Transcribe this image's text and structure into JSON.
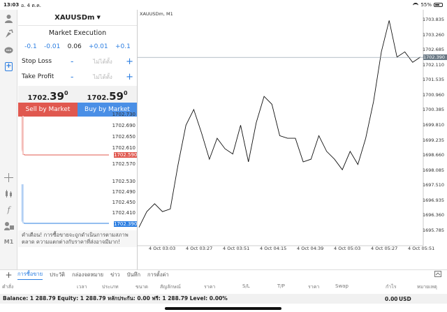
{
  "status_bar": {
    "time": "13:03",
    "date": "อ. 4 ต.ค.",
    "battery": "55%"
  },
  "left_tools": [
    "user-icon",
    "login-icon",
    "chat-icon",
    "new-order-icon",
    "crosshair-icon",
    "candle-type-icon",
    "indicator-f-icon",
    "objects-icon",
    "timeframe-label"
  ],
  "timeframe": "M1",
  "order_panel": {
    "symbol": "XAUUSDm",
    "dropdown_arrow": "▼",
    "execution": "Market Execution",
    "volume_steps": [
      "-0.1",
      "-0.01",
      "0.06",
      "+0.01",
      "+0.1"
    ],
    "stop_loss": {
      "label": "Stop Loss",
      "minus": "-",
      "placeholder": "ไม่ได้ตั้ง",
      "plus": "+"
    },
    "take_profit": {
      "label": "Take Profit",
      "minus": "-",
      "placeholder": "ไม่ได้ตั้ง",
      "plus": "+"
    },
    "bid": {
      "prefix": "1702.",
      "big": "39",
      "sup": "0"
    },
    "ask": {
      "prefix": "1702.",
      "big": "59",
      "sup": "0"
    },
    "sell_label": "Sell by Market",
    "buy_label": "Buy by Market",
    "sell_color": "#e0584f",
    "buy_color": "#4a8fe6"
  },
  "tick_chart_top": {
    "labels": [
      "1702.730",
      "1702.690",
      "1702.650",
      "1702.610",
      "1702.570"
    ],
    "tag": "1702.590"
  },
  "tick_chart_bottom": {
    "labels": [
      "1702.530",
      "1702.490",
      "1702.450",
      "1702.410"
    ],
    "tag": "1702.390"
  },
  "warning": "คำเตือน! การซื้อขายจะถูกดำเนินการตามสภาพตลาด ความแตกต่างกับราคาที่ส่งอาจมีมาก!",
  "chart": {
    "title": "XAUUSDm, M1",
    "current_price": "1702.390",
    "y_labels": [
      "1703.835",
      "1703.260",
      "1702.685",
      "1702.110",
      "1701.535",
      "1700.960",
      "1700.385",
      "1699.810",
      "1699.235",
      "1698.660",
      "1698.085",
      "1697.510",
      "1696.935",
      "1696.360",
      "1695.785"
    ],
    "x_labels": [
      "4 Oct 03:03",
      "4 Oct 03:27",
      "4 Oct 03:51",
      "4 Oct 04:15",
      "4 Oct 04:39",
      "4 Oct 05:03",
      "4 Oct 05:27",
      "4 Oct 05:51"
    ]
  },
  "chart_data": {
    "type": "line",
    "title": "XAUUSDm, M1",
    "xlabel": "",
    "ylabel": "",
    "ylim": [
      1695.5,
      1704.0
    ],
    "x": [
      "03:00",
      "03:06",
      "03:12",
      "03:18",
      "03:24",
      "03:27",
      "03:30",
      "03:36",
      "03:42",
      "03:48",
      "03:51",
      "03:54",
      "04:00",
      "04:06",
      "04:12",
      "04:15",
      "04:18",
      "04:24",
      "04:30",
      "04:36",
      "04:39",
      "04:42",
      "04:48",
      "04:54",
      "05:00",
      "05:03",
      "05:06",
      "05:12",
      "05:18",
      "05:24",
      "05:27",
      "05:30",
      "05:36",
      "05:42",
      "05:48",
      "05:51",
      "05:54"
    ],
    "series": [
      {
        "values": [
          1695.9,
          1696.5,
          1696.8,
          1696.5,
          1696.6,
          1698.3,
          1699.8,
          1700.4,
          1699.5,
          1698.5,
          1699.3,
          1698.9,
          1698.7,
          1699.8,
          1698.4,
          1699.9,
          1700.9,
          1700.6,
          1699.4,
          1699.3,
          1699.3,
          1698.4,
          1698.5,
          1699.4,
          1698.8,
          1698.5,
          1698.1,
          1698.8,
          1698.3,
          1699.3,
          1700.7,
          1702.6,
          1703.8,
          1702.4,
          1702.6,
          1702.2,
          1702.4
        ]
      }
    ],
    "grid": false,
    "line_color": "#111111",
    "current_price_line": 1702.39
  },
  "bottom_tabs": {
    "add": "+",
    "items": [
      "การซื้อขาย",
      "ประวัติ",
      "กล่องจดหมาย",
      "ข่าว",
      "บันทึก",
      "การตั้งค่า"
    ]
  },
  "columns": [
    "คำสั่ง",
    "เวลา",
    "ประเภท",
    "ขนาด",
    "สัญลักษณ์",
    "ราคา",
    "S/L",
    "T/P",
    "ราคา",
    "Swap",
    "กำไร",
    "หมายเหตุ"
  ],
  "balance": {
    "text": "Balance: 1 288.79 Equity: 1 288.79 หลักประกัน: 0.00 ฟรี: 1 288.79 Level: 0.00%",
    "profit": "0.00",
    "currency": "USD"
  }
}
